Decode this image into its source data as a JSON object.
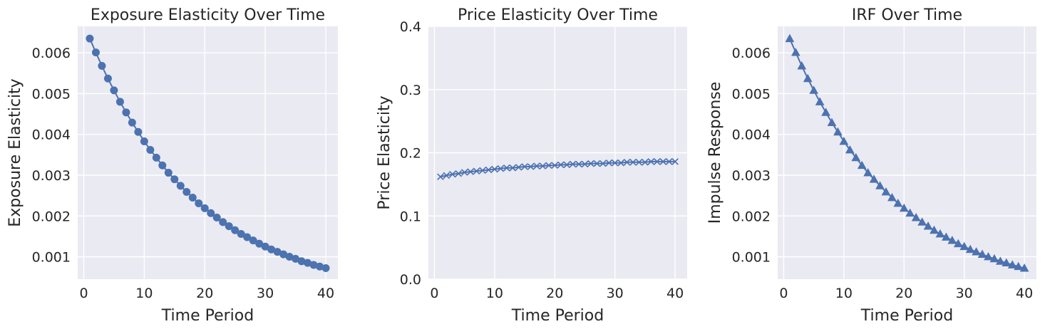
{
  "chart_data": [
    {
      "type": "line",
      "title": "Exposure Elasticity Over Time",
      "xlabel": "Time Period",
      "ylabel": "Exposure Elasticity",
      "marker": "circle",
      "xlim": [
        -1,
        42
      ],
      "ylim": [
        0.00045,
        0.00665
      ],
      "xticks": [
        0,
        10,
        20,
        30,
        40
      ],
      "yticks": [
        0.001,
        0.002,
        0.003,
        0.004,
        0.005,
        0.006
      ],
      "ytick_labels": [
        "0.001",
        "0.002",
        "0.003",
        "0.004",
        "0.005",
        "0.006"
      ],
      "grid": true,
      "series": [
        {
          "x": [
            1,
            2,
            3,
            4,
            5,
            6,
            7,
            8,
            9,
            10,
            11,
            12,
            13,
            14,
            15,
            16,
            17,
            18,
            19,
            20,
            21,
            22,
            23,
            24,
            25,
            26,
            27,
            28,
            29,
            30,
            31,
            32,
            33,
            34,
            35,
            36,
            37,
            38,
            39,
            40
          ],
          "values": [
            0.00635,
            0.00601,
            0.00568,
            0.00537,
            0.00508,
            0.0048,
            0.00454,
            0.00429,
            0.00406,
            0.00383,
            0.00362,
            0.00343,
            0.00324,
            0.00306,
            0.0029,
            0.00274,
            0.00259,
            0.00245,
            0.00231,
            0.00219,
            0.00207,
            0.00196,
            0.00185,
            0.00175,
            0.00165,
            0.00156,
            0.00148,
            0.0014,
            0.00132,
            0.00125,
            0.00118,
            0.00112,
            0.00106,
            0.001,
            0.00095,
            0.00089,
            0.00085,
            0.0008,
            0.00076,
            0.00072
          ]
        }
      ]
    },
    {
      "type": "line",
      "title": "Price Elasticity Over Time",
      "xlabel": "Time Period",
      "ylabel": "Price Elasticity",
      "marker": "x",
      "xlim": [
        -1,
        42
      ],
      "ylim": [
        0,
        0.4
      ],
      "xticks": [
        0,
        10,
        20,
        30,
        40
      ],
      "yticks": [
        0.0,
        0.1,
        0.2,
        0.3,
        0.4
      ],
      "ytick_labels": [
        "0.0",
        "0.1",
        "0.2",
        "0.3",
        "0.4"
      ],
      "grid": true,
      "series": [
        {
          "x": [
            1,
            2,
            3,
            4,
            5,
            6,
            7,
            8,
            9,
            10,
            11,
            12,
            13,
            14,
            15,
            16,
            17,
            18,
            19,
            20,
            21,
            22,
            23,
            24,
            25,
            26,
            27,
            28,
            29,
            30,
            31,
            32,
            33,
            34,
            35,
            36,
            37,
            38,
            39,
            40
          ],
          "values": [
            0.162,
            0.164,
            0.166,
            0.167,
            0.169,
            0.17,
            0.171,
            0.172,
            0.173,
            0.174,
            0.175,
            0.176,
            0.176,
            0.177,
            0.178,
            0.178,
            0.179,
            0.179,
            0.18,
            0.18,
            0.181,
            0.181,
            0.182,
            0.182,
            0.182,
            0.183,
            0.183,
            0.183,
            0.184,
            0.184,
            0.184,
            0.185,
            0.185,
            0.185,
            0.185,
            0.186,
            0.186,
            0.186,
            0.186,
            0.186
          ]
        }
      ]
    },
    {
      "type": "line",
      "title": "IRF Over Time",
      "xlabel": "Time Period",
      "ylabel": "Impulse Response",
      "marker": "triangle",
      "xlim": [
        -1,
        42
      ],
      "ylim": [
        0.00045,
        0.00665
      ],
      "xticks": [
        0,
        10,
        20,
        30,
        40
      ],
      "yticks": [
        0.001,
        0.002,
        0.003,
        0.004,
        0.005,
        0.006
      ],
      "ytick_labels": [
        "0.001",
        "0.002",
        "0.003",
        "0.004",
        "0.005",
        "0.006"
      ],
      "grid": true,
      "series": [
        {
          "x": [
            1,
            2,
            3,
            4,
            5,
            6,
            7,
            8,
            9,
            10,
            11,
            12,
            13,
            14,
            15,
            16,
            17,
            18,
            19,
            20,
            21,
            22,
            23,
            24,
            25,
            26,
            27,
            28,
            29,
            30,
            31,
            32,
            33,
            34,
            35,
            36,
            37,
            38,
            39,
            40
          ],
          "values": [
            0.00635,
            0.00601,
            0.00568,
            0.00537,
            0.00508,
            0.0048,
            0.00454,
            0.00429,
            0.00406,
            0.00383,
            0.00362,
            0.00343,
            0.00324,
            0.00306,
            0.0029,
            0.00274,
            0.00259,
            0.00245,
            0.00231,
            0.00219,
            0.00207,
            0.00196,
            0.00185,
            0.00175,
            0.00165,
            0.00156,
            0.00148,
            0.0014,
            0.00132,
            0.00125,
            0.00118,
            0.00112,
            0.00106,
            0.001,
            0.00095,
            0.00089,
            0.00085,
            0.0008,
            0.00076,
            0.00072
          ]
        }
      ]
    }
  ]
}
